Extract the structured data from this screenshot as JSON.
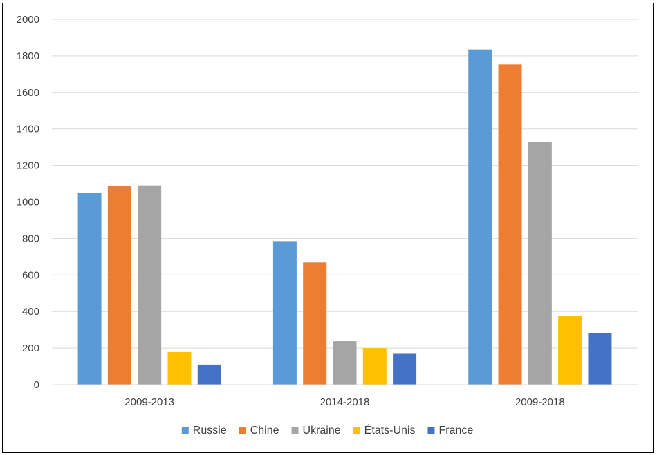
{
  "chart_data": {
    "type": "bar",
    "title": "",
    "xlabel": "",
    "ylabel": "",
    "ylim": [
      0,
      2000
    ],
    "yticks": [
      0,
      200,
      400,
      600,
      800,
      1000,
      1200,
      1400,
      1600,
      1800,
      2000
    ],
    "grid": true,
    "legend_position": "bottom",
    "categories": [
      "2009-2013",
      "2014-2018",
      "2009-2018"
    ],
    "series": [
      {
        "name": "Russie",
        "color": "#5B9BD5",
        "values": [
          1050,
          785,
          1835
        ]
      },
      {
        "name": "Chine",
        "color": "#ED7D31",
        "values": [
          1085,
          668,
          1753
        ]
      },
      {
        "name": "Ukraine",
        "color": "#A5A5A5",
        "values": [
          1090,
          238,
          1328
        ]
      },
      {
        "name": "États-Unis",
        "color": "#FFC000",
        "values": [
          178,
          200,
          378
        ]
      },
      {
        "name": "France",
        "color": "#4472C4",
        "values": [
          110,
          172,
          282
        ]
      }
    ]
  }
}
